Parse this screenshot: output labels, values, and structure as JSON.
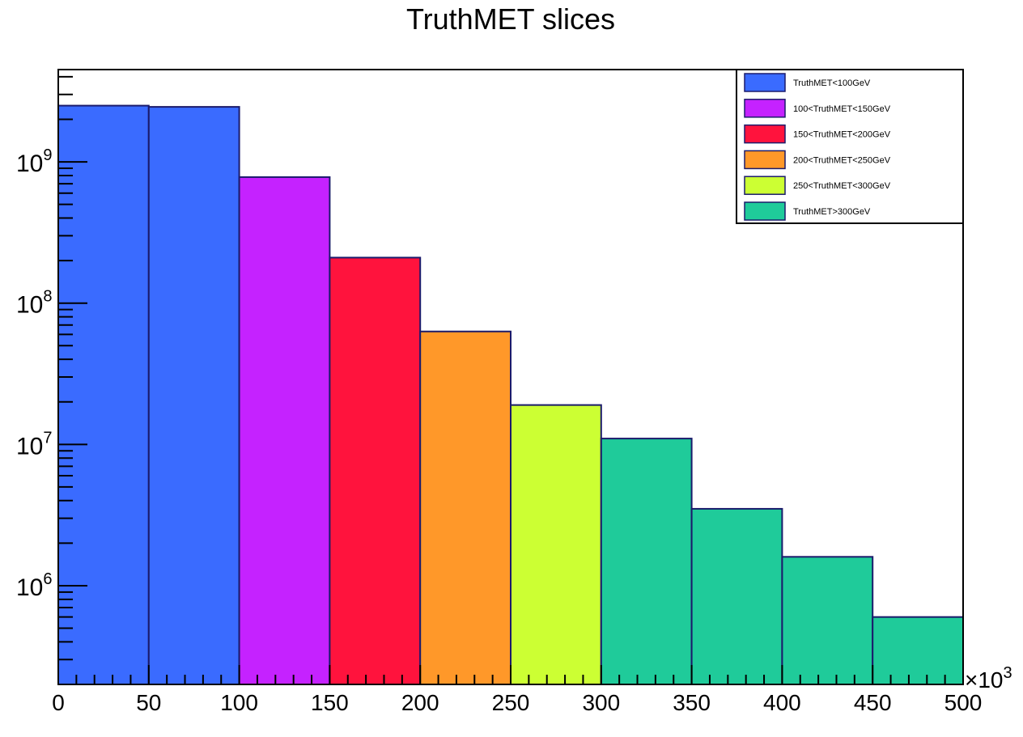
{
  "chart_data": {
    "type": "bar",
    "title": "TruthMET slices",
    "xlabel": "",
    "ylabel": "",
    "x_multiplier": "×10",
    "x_multiplier_exp": "3",
    "xlim": [
      0,
      500
    ],
    "ylim": [
      200000,
      4500000000
    ],
    "yscale": "log",
    "x_ticks": [
      "0",
      "50",
      "100",
      "150",
      "200",
      "250",
      "300",
      "350",
      "400",
      "450",
      "500"
    ],
    "y_ticks": [
      {
        "base": "10",
        "exp": "6",
        "value": 1000000
      },
      {
        "base": "10",
        "exp": "7",
        "value": 10000000
      },
      {
        "base": "10",
        "exp": "8",
        "value": 100000000
      },
      {
        "base": "10",
        "exp": "9",
        "value": 1000000000
      }
    ],
    "grid": false,
    "legend_position": "top-right",
    "series": [
      {
        "name": "TruthMET<100GeV",
        "color": "#3a6bff",
        "bins": [
          {
            "x0": 0,
            "x1": 50,
            "y": 2500000000
          },
          {
            "x0": 50,
            "x1": 100,
            "y": 2450000000
          }
        ]
      },
      {
        "name": "100<TruthMET<150GeV",
        "color": "#c522ff",
        "bins": [
          {
            "x0": 100,
            "x1": 150,
            "y": 780000000
          }
        ]
      },
      {
        "name": "150<TruthMET<200GeV",
        "color": "#ff133d",
        "bins": [
          {
            "x0": 150,
            "x1": 200,
            "y": 210000000
          }
        ]
      },
      {
        "name": "200<TruthMET<250GeV",
        "color": "#ff9829",
        "bins": [
          {
            "x0": 200,
            "x1": 250,
            "y": 63000000
          }
        ]
      },
      {
        "name": "250<TruthMET<300GeV",
        "color": "#ccff33",
        "bins": [
          {
            "x0": 250,
            "x1": 300,
            "y": 19000000
          }
        ]
      },
      {
        "name": "TruthMET>300GeV",
        "color": "#1fcb9a",
        "bins": [
          {
            "x0": 300,
            "x1": 350,
            "y": 11000000
          },
          {
            "x0": 350,
            "x1": 400,
            "y": 3500000
          },
          {
            "x0": 400,
            "x1": 450,
            "y": 1600000
          },
          {
            "x0": 450,
            "x1": 500,
            "y": 600000
          }
        ]
      }
    ]
  }
}
